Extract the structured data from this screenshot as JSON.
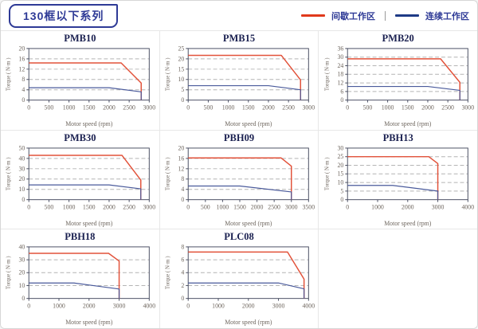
{
  "header": {
    "title": "130框以下系列",
    "legend": {
      "separator": "|",
      "items": [
        {
          "label": "间歇工作区",
          "color": "#e0391b"
        },
        {
          "label": "连续工作区",
          "color": "#1e3a86"
        }
      ]
    }
  },
  "colors": {
    "intermittent": "#e2523a",
    "continuous": "#4a5a9b",
    "grid": "#b4b4b4",
    "frame": "#4a4f63",
    "axis_label": "#7fa8d8",
    "tick_label": "#6f675f",
    "title": "#1a2050"
  },
  "chart_data": [
    {
      "type": "line",
      "title": "PMB10",
      "xlabel": "Motor speed (rpm)",
      "ylabel": "Torque ( N·m )",
      "xlim": [
        0,
        3000
      ],
      "ylim": [
        0,
        20
      ],
      "xticks": [
        0,
        500,
        1000,
        1500,
        2000,
        2500,
        3000
      ],
      "yticks": [
        0,
        4,
        8,
        12,
        16,
        20
      ],
      "grid": "horizontal-dashed",
      "legend_position": "none",
      "series": [
        {
          "name": "间歇工作区",
          "color_key": "intermittent",
          "points": [
            [
              0,
              14.4
            ],
            [
              2300,
              14.4
            ],
            [
              2800,
              6.6
            ],
            [
              2800,
              0
            ]
          ]
        },
        {
          "name": "连续工作区",
          "color_key": "continuous",
          "points": [
            [
              0,
              4.8
            ],
            [
              2000,
              4.8
            ],
            [
              2800,
              3.2
            ],
            [
              2800,
              0
            ]
          ]
        }
      ]
    },
    {
      "type": "line",
      "title": "PMB15",
      "xlabel": "Motor speed (rpm)",
      "ylabel": "Torque ( N·m )",
      "xlim": [
        0,
        3000
      ],
      "ylim": [
        0,
        25
      ],
      "xticks": [
        0,
        500,
        1000,
        1500,
        2000,
        2500,
        3000
      ],
      "yticks": [
        0,
        5,
        10,
        15,
        20,
        25
      ],
      "grid": "horizontal-dashed",
      "legend_position": "none",
      "series": [
        {
          "name": "间歇工作区",
          "color_key": "intermittent",
          "points": [
            [
              0,
              21.7
            ],
            [
              2320,
              21.7
            ],
            [
              2800,
              9.8
            ],
            [
              2800,
              0
            ]
          ]
        },
        {
          "name": "连续工作区",
          "color_key": "continuous",
          "points": [
            [
              0,
              7
            ],
            [
              2000,
              7
            ],
            [
              2800,
              5
            ],
            [
              2800,
              0
            ]
          ]
        }
      ]
    },
    {
      "type": "line",
      "title": "PMB20",
      "xlabel": "Motor speed (rpm)",
      "ylabel": "Torque ( N·m )",
      "xlim": [
        0,
        3000
      ],
      "ylim": [
        0,
        36
      ],
      "xticks": [
        0,
        500,
        1000,
        1500,
        2000,
        2500,
        3000
      ],
      "yticks": [
        0,
        6,
        12,
        18,
        24,
        30,
        36
      ],
      "grid": "horizontal-dashed",
      "legend_position": "none",
      "series": [
        {
          "name": "间歇工作区",
          "color_key": "intermittent",
          "points": [
            [
              0,
              28.8
            ],
            [
              2320,
              28.8
            ],
            [
              2800,
              12.4
            ],
            [
              2800,
              0
            ]
          ]
        },
        {
          "name": "连续工作区",
          "color_key": "continuous",
          "points": [
            [
              0,
              9.5
            ],
            [
              2000,
              9.5
            ],
            [
              2800,
              6.8
            ],
            [
              2800,
              0
            ]
          ]
        }
      ]
    },
    {
      "type": "line",
      "title": "PMB30",
      "xlabel": "Motor speed (rpm)",
      "ylabel": "Torque ( N·m )",
      "xlim": [
        0,
        3000
      ],
      "ylim": [
        0,
        50
      ],
      "xticks": [
        0,
        500,
        1000,
        1500,
        2000,
        2500,
        3000
      ],
      "yticks": [
        0,
        10,
        20,
        30,
        40,
        50
      ],
      "grid": "horizontal-dashed",
      "legend_position": "none",
      "series": [
        {
          "name": "间歇工作区",
          "color_key": "intermittent",
          "points": [
            [
              0,
              43
            ],
            [
              2320,
              43
            ],
            [
              2790,
              19
            ],
            [
              2790,
              0
            ]
          ]
        },
        {
          "name": "连续工作区",
          "color_key": "continuous",
          "points": [
            [
              0,
              14.3
            ],
            [
              2000,
              14.3
            ],
            [
              2790,
              10.5
            ],
            [
              2790,
              0
            ]
          ]
        }
      ]
    },
    {
      "type": "line",
      "title": "PBH09",
      "xlabel": "Motor speed (rpm)",
      "ylabel": "Torque ( N·m )",
      "xlim": [
        0,
        3500
      ],
      "ylim": [
        0,
        20
      ],
      "xticks": [
        0,
        500,
        1000,
        1500,
        2000,
        2500,
        3000,
        3500
      ],
      "yticks": [
        0,
        4,
        8,
        12,
        16,
        20
      ],
      "grid": "horizontal-dashed",
      "legend_position": "none",
      "series": [
        {
          "name": "间歇工作区",
          "color_key": "intermittent",
          "points": [
            [
              0,
              16.2
            ],
            [
              2700,
              16.2
            ],
            [
              3000,
              13
            ],
            [
              3000,
              0
            ]
          ]
        },
        {
          "name": "连续工作区",
          "color_key": "continuous",
          "points": [
            [
              0,
              5.3
            ],
            [
              1500,
              5.3
            ],
            [
              3000,
              3
            ],
            [
              3000,
              0
            ]
          ]
        }
      ]
    },
    {
      "type": "line",
      "title": "PBH13",
      "xlabel": "Motor speed (rpm)",
      "ylabel": "Torque ( N·m )",
      "xlim": [
        0,
        4000
      ],
      "ylim": [
        0,
        30
      ],
      "xticks": [
        0,
        1000,
        2000,
        3000,
        4000
      ],
      "yticks": [
        0,
        5,
        10,
        15,
        20,
        25,
        30
      ],
      "grid": "horizontal-dashed",
      "legend_position": "none",
      "series": [
        {
          "name": "间歇工作区",
          "color_key": "intermittent",
          "points": [
            [
              0,
              25
            ],
            [
              2700,
              25
            ],
            [
              3000,
              21
            ],
            [
              3000,
              0
            ]
          ]
        },
        {
          "name": "连续工作区",
          "color_key": "continuous",
          "points": [
            [
              0,
              8.3
            ],
            [
              1500,
              8.3
            ],
            [
              3000,
              5
            ],
            [
              3000,
              0
            ]
          ]
        }
      ]
    },
    {
      "type": "line",
      "title": "PBH18",
      "xlabel": "Motor speed (rpm)",
      "ylabel": "Torque ( N·m )",
      "xlim": [
        0,
        4000
      ],
      "ylim": [
        0,
        40
      ],
      "xticks": [
        0,
        1000,
        2000,
        3000,
        4000
      ],
      "yticks": [
        0,
        10,
        20,
        30,
        40
      ],
      "grid": "horizontal-dashed",
      "legend_position": "none",
      "series": [
        {
          "name": "间歇工作区",
          "color_key": "intermittent",
          "points": [
            [
              0,
              35
            ],
            [
              2650,
              35
            ],
            [
              3000,
              29
            ],
            [
              3000,
              0
            ]
          ]
        },
        {
          "name": "连续工作区",
          "color_key": "continuous",
          "points": [
            [
              0,
              12
            ],
            [
              1500,
              12
            ],
            [
              3000,
              7.3
            ],
            [
              3000,
              0
            ]
          ]
        }
      ]
    },
    {
      "type": "line",
      "title": "PLC08",
      "xlabel": "Motor speed (rpm)",
      "ylabel": "Torque ( N·m )",
      "xlim": [
        0,
        4000
      ],
      "ylim": [
        0,
        8
      ],
      "xticks": [
        0,
        1000,
        2000,
        3000,
        4000
      ],
      "yticks": [
        0,
        2,
        4,
        6,
        8
      ],
      "grid": "horizontal-dashed",
      "legend_position": "none",
      "series": [
        {
          "name": "间歇工作区",
          "color_key": "intermittent",
          "points": [
            [
              0,
              7.2
            ],
            [
              3300,
              7.2
            ],
            [
              3850,
              3
            ],
            [
              3850,
              0
            ]
          ]
        },
        {
          "name": "连续工作区",
          "color_key": "continuous",
          "points": [
            [
              0,
              2.4
            ],
            [
              3000,
              2.4
            ],
            [
              3850,
              1.5
            ],
            [
              3850,
              0
            ]
          ]
        }
      ]
    }
  ]
}
